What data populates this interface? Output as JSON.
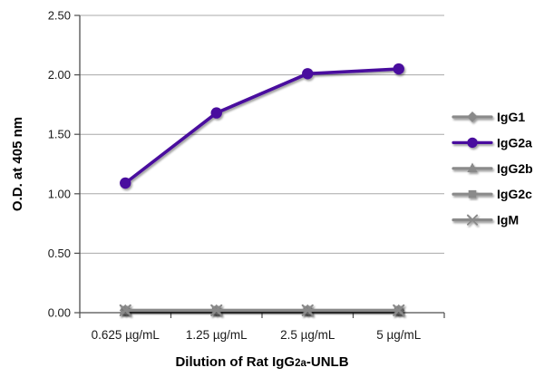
{
  "chart_data": {
    "type": "line",
    "categories": [
      "0.625 µg/mL",
      "1.25 µg/mL",
      "2.5 µg/mL",
      "5 µg/mL"
    ],
    "series": [
      {
        "name": "IgG1",
        "marker": "diamond",
        "color": "#8a8a8a",
        "values": [
          0.02,
          0.02,
          0.02,
          0.02
        ]
      },
      {
        "name": "IgG2a",
        "marker": "circle",
        "color": "#4a0d9e",
        "values": [
          1.09,
          1.68,
          2.01,
          2.05
        ]
      },
      {
        "name": "IgG2b",
        "marker": "triangle",
        "color": "#8a8a8a",
        "values": [
          0.02,
          0.02,
          0.02,
          0.02
        ]
      },
      {
        "name": "IgG2c",
        "marker": "square",
        "color": "#8a8a8a",
        "values": [
          0.02,
          0.02,
          0.02,
          0.02
        ]
      },
      {
        "name": "IgM",
        "marker": "x",
        "color": "#8a8a8a",
        "values": [
          0.02,
          0.02,
          0.02,
          0.02
        ]
      }
    ],
    "title": "",
    "ylabel": "O.D. at 405 nm",
    "xlabel": {
      "prefix": "Dilution of Rat IgG",
      "sub": "2a",
      "suffix": "-UNLB"
    },
    "ylim": [
      0,
      2.5
    ],
    "ytick_step": 0.5,
    "ytick_labels": [
      "0.00",
      "0.50",
      "1.00",
      "1.50",
      "2.00",
      "2.50"
    ],
    "grid": true,
    "legend_position": "right"
  },
  "colors": {
    "accent_purple": "#4a0d9e",
    "series_gray": "#8a8a8a",
    "gridline": "#a8a8a8",
    "axis": "#4d4d4d",
    "text": "#000000",
    "background": "#ffffff"
  }
}
